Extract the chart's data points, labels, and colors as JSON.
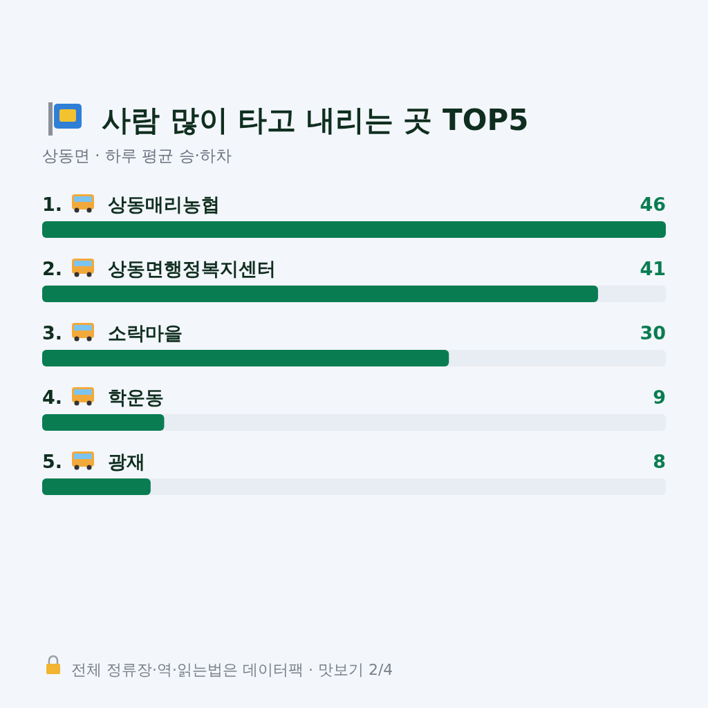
{
  "chart_data": {
    "type": "bar",
    "orientation": "horizontal",
    "title": "사람 많이 타고 내리는 곳 TOP5",
    "subtitle": "상동면 · 하루 평균 승·하차",
    "categories": [
      "1. 상동매리농협",
      "2. 상동면행정복지센터",
      "3. 소락마을",
      "4. 학운동",
      "5. 광재"
    ],
    "values": [
      46,
      41,
      30,
      9,
      8
    ],
    "color": "#0a7c52",
    "data_labels": true,
    "annotations": [
      "전체 정류장·역·읽는법은 데이터팩 · 맛보기 2/4"
    ]
  }
}
